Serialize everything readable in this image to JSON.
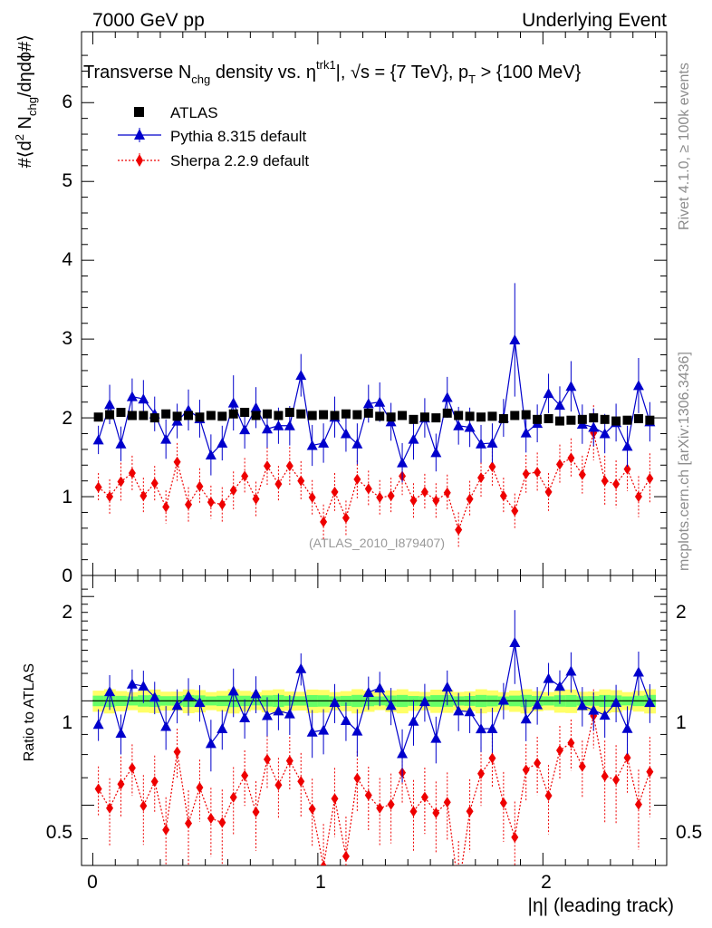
{
  "header": {
    "left": "7000 GeV pp",
    "right": "Underlying Event"
  },
  "side": {
    "rivet": "Rivet 4.1.0, ≥ 100k events",
    "mcplots": "mcplots.cern.ch [arXiv:1306.3436]"
  },
  "chart_data": {
    "type": "scatter",
    "title": "Transverse N_chg density vs. η^trk1|, √s = {7 TeV}, p_T > {100 MeV}",
    "title_parts": {
      "a": "Transverse N",
      "a_sub": "chg",
      "b": " density vs. ",
      "c": "η",
      "c_sup": "trk1",
      "d": "|, √s = {7 TeV}, p",
      "d_sub": "T",
      "e": " > {100 MeV}"
    },
    "watermark": "(ATLAS_2010_I879407)",
    "xlabel": "|η| (leading track)",
    "ylabel": "#⟨d² N_chg/dηdϕ#⟩",
    "ylabel_parts": {
      "a": "#⟨d",
      "a_sup": "2",
      "b": " N",
      "b_sub": "chg",
      "c": "/dηdϕ#⟩"
    },
    "ratio_ylabel": "Ratio to ATLAS",
    "xlim": [
      -0.05,
      2.55
    ],
    "ylim": [
      0,
      6.9
    ],
    "ratio_ylim": [
      0.335,
      2.3
    ],
    "x_ticks": [
      "0",
      "1",
      "2"
    ],
    "y_ticks": [
      "0",
      "1",
      "2",
      "3",
      "4",
      "5",
      "6"
    ],
    "ratio_ticks": [
      "0.5",
      "1",
      "2"
    ],
    "legend": [
      {
        "name": "ATLAS",
        "marker": "square",
        "color": "#000000"
      },
      {
        "name": "Pythia 8.315 default",
        "marker": "triangle",
        "color": "#0000cc"
      },
      {
        "name": "Sherpa 2.2.9 default",
        "marker": "diamond",
        "color": "#ee0000"
      }
    ],
    "x": [
      0.025,
      0.075,
      0.125,
      0.175,
      0.225,
      0.275,
      0.325,
      0.375,
      0.425,
      0.475,
      0.525,
      0.575,
      0.625,
      0.675,
      0.725,
      0.775,
      0.825,
      0.875,
      0.925,
      0.975,
      1.025,
      1.075,
      1.125,
      1.175,
      1.225,
      1.275,
      1.325,
      1.375,
      1.425,
      1.475,
      1.525,
      1.575,
      1.625,
      1.675,
      1.725,
      1.775,
      1.825,
      1.875,
      1.925,
      1.975,
      2.025,
      2.075,
      2.125,
      2.175,
      2.225,
      2.275,
      2.325,
      2.375,
      2.425,
      2.475
    ],
    "series": [
      {
        "name": "ATLAS",
        "values": [
          2.01,
          2.04,
          2.07,
          2.03,
          2.03,
          2.0,
          2.05,
          2.02,
          2.03,
          2.01,
          2.03,
          2.02,
          2.05,
          2.07,
          2.03,
          2.05,
          2.03,
          2.07,
          2.05,
          2.03,
          2.04,
          2.03,
          2.05,
          2.04,
          2.06,
          2.02,
          2.01,
          2.03,
          1.98,
          2.01,
          2.0,
          2.06,
          2.03,
          2.02,
          2.01,
          2.02,
          1.99,
          2.03,
          2.04,
          1.98,
          1.99,
          1.96,
          1.97,
          1.98,
          2.0,
          1.98,
          1.96,
          1.97,
          1.99,
          1.97
        ]
      },
      {
        "name": "Pythia 8.315 default",
        "values": [
          1.72,
          2.17,
          1.67,
          2.27,
          2.24,
          2.05,
          1.73,
          1.96,
          2.1,
          1.99,
          1.53,
          1.68,
          2.19,
          1.85,
          2.13,
          1.86,
          1.9,
          1.9,
          2.54,
          1.65,
          1.68,
          2.01,
          1.8,
          1.67,
          2.18,
          2.2,
          1.95,
          1.43,
          1.73,
          2.0,
          1.56,
          2.26,
          1.9,
          1.88,
          1.67,
          1.68,
          2.0,
          2.99,
          1.81,
          1.93,
          2.31,
          2.16,
          2.4,
          1.92,
          1.88,
          1.8,
          1.94,
          1.64,
          2.41,
          1.95
        ],
        "errors": [
          0.18,
          0.25,
          0.22,
          0.23,
          0.24,
          0.22,
          0.25,
          0.22,
          0.26,
          0.24,
          0.26,
          0.22,
          0.35,
          0.24,
          0.26,
          0.24,
          0.23,
          0.25,
          0.27,
          0.26,
          0.25,
          0.26,
          0.23,
          0.26,
          0.24,
          0.25,
          0.24,
          0.25,
          0.26,
          0.25,
          0.24,
          0.26,
          0.24,
          0.25,
          0.24,
          0.25,
          0.24,
          0.72,
          0.25,
          0.24,
          0.25,
          0.24,
          0.32,
          0.25,
          0.24,
          0.25,
          0.24,
          0.26,
          0.35,
          0.25
        ]
      },
      {
        "name": "Sherpa 2.2.9 default",
        "values": [
          1.12,
          1.0,
          1.19,
          1.3,
          1.01,
          1.17,
          0.87,
          1.44,
          0.9,
          1.13,
          0.93,
          0.9,
          1.08,
          1.26,
          0.97,
          1.39,
          1.16,
          1.39,
          1.2,
          0.99,
          0.68,
          1.06,
          0.73,
          1.22,
          1.1,
          0.99,
          1.01,
          1.26,
          0.95,
          1.06,
          0.95,
          1.05,
          0.58,
          0.97,
          1.24,
          1.38,
          1.01,
          0.82,
          1.29,
          1.31,
          1.06,
          1.41,
          1.49,
          1.28,
          1.81,
          1.2,
          1.16,
          1.35,
          1.0,
          1.23
        ],
        "errors": [
          0.18,
          0.22,
          0.24,
          0.22,
          0.23,
          0.22,
          0.21,
          0.24,
          0.22,
          0.23,
          0.21,
          0.22,
          0.24,
          0.23,
          0.22,
          0.24,
          0.23,
          0.24,
          0.25,
          0.22,
          0.22,
          0.24,
          0.22,
          0.24,
          0.23,
          0.22,
          0.23,
          0.24,
          0.22,
          0.23,
          0.22,
          0.23,
          0.22,
          0.23,
          0.24,
          0.24,
          0.23,
          0.22,
          0.24,
          0.25,
          0.24,
          0.25,
          0.25,
          0.24,
          0.35,
          0.32,
          0.3,
          0.28,
          0.26,
          0.32
        ]
      }
    ],
    "ratio": {
      "band_inner": 0.035,
      "band_outer": 0.07,
      "band_colors": [
        "#ffff66",
        "#66ff66"
      ],
      "band_stroke": "#009900"
    }
  }
}
